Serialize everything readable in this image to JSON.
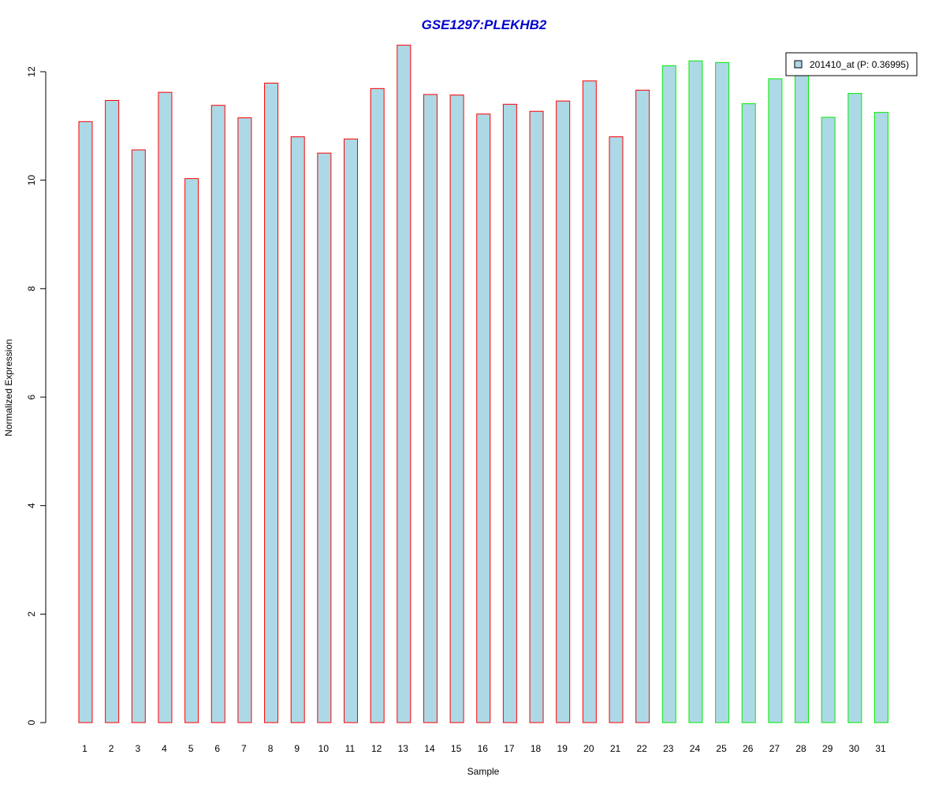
{
  "chart_data": {
    "type": "bar",
    "title": "GSE1297:PLEKHB2",
    "xlabel": "Sample",
    "ylabel": "Normalized Expression",
    "ylim": [
      0,
      12
    ],
    "yticks": [
      0,
      2,
      4,
      6,
      8,
      10,
      12
    ],
    "categories": [
      "1",
      "2",
      "3",
      "4",
      "5",
      "6",
      "7",
      "8",
      "9",
      "10",
      "11",
      "12",
      "13",
      "14",
      "15",
      "16",
      "17",
      "18",
      "19",
      "20",
      "21",
      "22",
      "23",
      "24",
      "25",
      "26",
      "27",
      "28",
      "29",
      "30",
      "31"
    ],
    "series": [
      {
        "name": "201410_at (P: 0.36995)",
        "values": [
          11.08,
          11.47,
          10.56,
          11.62,
          10.03,
          11.38,
          11.15,
          11.79,
          10.8,
          10.5,
          10.76,
          11.69,
          12.49,
          11.58,
          11.57,
          11.22,
          11.4,
          11.27,
          11.46,
          11.83,
          10.8,
          11.66,
          12.11,
          12.2,
          12.17,
          11.41,
          11.87,
          11.95,
          11.16,
          11.6,
          11.25
        ],
        "fill_color": "#add8e6"
      }
    ],
    "sample_groups": [
      "group1",
      "group1",
      "group1",
      "group1",
      "group1",
      "group1",
      "group1",
      "group1",
      "group1",
      "group1",
      "group1",
      "group1",
      "group1",
      "group1",
      "group1",
      "group1",
      "group1",
      "group1",
      "group1",
      "group1",
      "group1",
      "group1",
      "group2",
      "group2",
      "group2",
      "group2",
      "group2",
      "group2",
      "group2",
      "group2",
      "group2"
    ],
    "group_border_colors": {
      "group1": "#ff0000",
      "group2": "#00ee00"
    },
    "title_color": "#0000cd",
    "legend_placement": "top-right",
    "grid": false
  }
}
